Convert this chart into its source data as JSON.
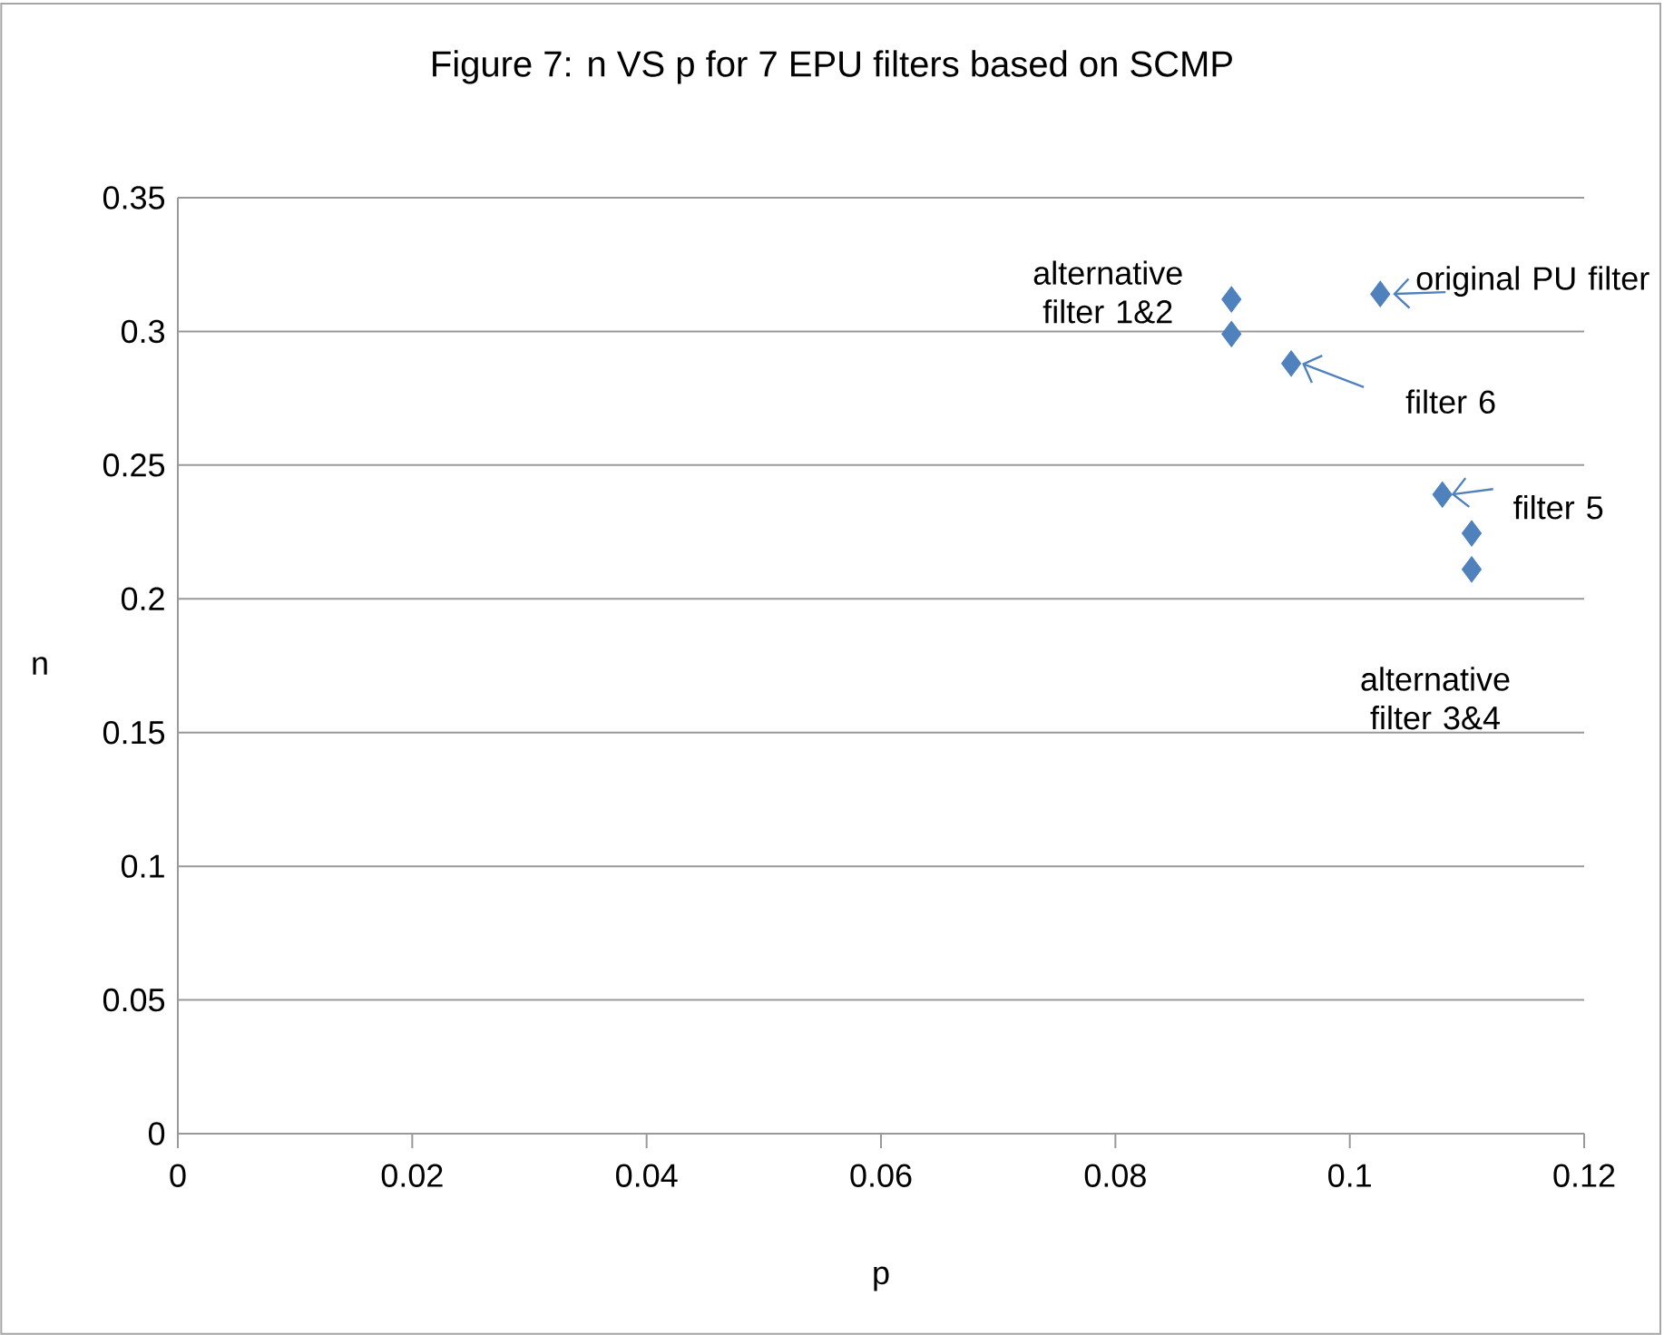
{
  "chart_data": {
    "type": "scatter",
    "title": "Figure 7: n VS p for 7 EPU filters based on SCMP",
    "xlabel": "p",
    "ylabel": "n",
    "x": [
      0.0899,
      0.0899,
      0.095,
      0.1026,
      0.1079,
      0.1104,
      0.1104
    ],
    "values": [
      0.312,
      0.299,
      0.288,
      0.314,
      0.239,
      0.2245,
      0.211
    ],
    "color": "#4f81bd",
    "marker": "diamond",
    "xlim": [
      0,
      0.12
    ],
    "xticks": [
      0,
      0.02,
      0.04,
      0.06,
      0.08,
      0.1,
      0.12
    ],
    "ylim": [
      0,
      0.35
    ],
    "yticks": [
      0,
      0.05,
      0.1,
      0.15,
      0.2,
      0.25,
      0.3,
      0.35
    ],
    "grid": "y",
    "annotations": [
      {
        "text": "alternative filter 1&2",
        "x": 0.0899,
        "y": 0.312
      },
      {
        "text": "original PU filter",
        "x": 0.1026,
        "y": 0.314
      },
      {
        "text": "filter 6",
        "x": 0.095,
        "y": 0.288
      },
      {
        "text": "filter 5",
        "x": 0.1079,
        "y": 0.239
      },
      {
        "text": "alternative filter 3&4",
        "x": 0.1104,
        "y": 0.211
      }
    ]
  }
}
